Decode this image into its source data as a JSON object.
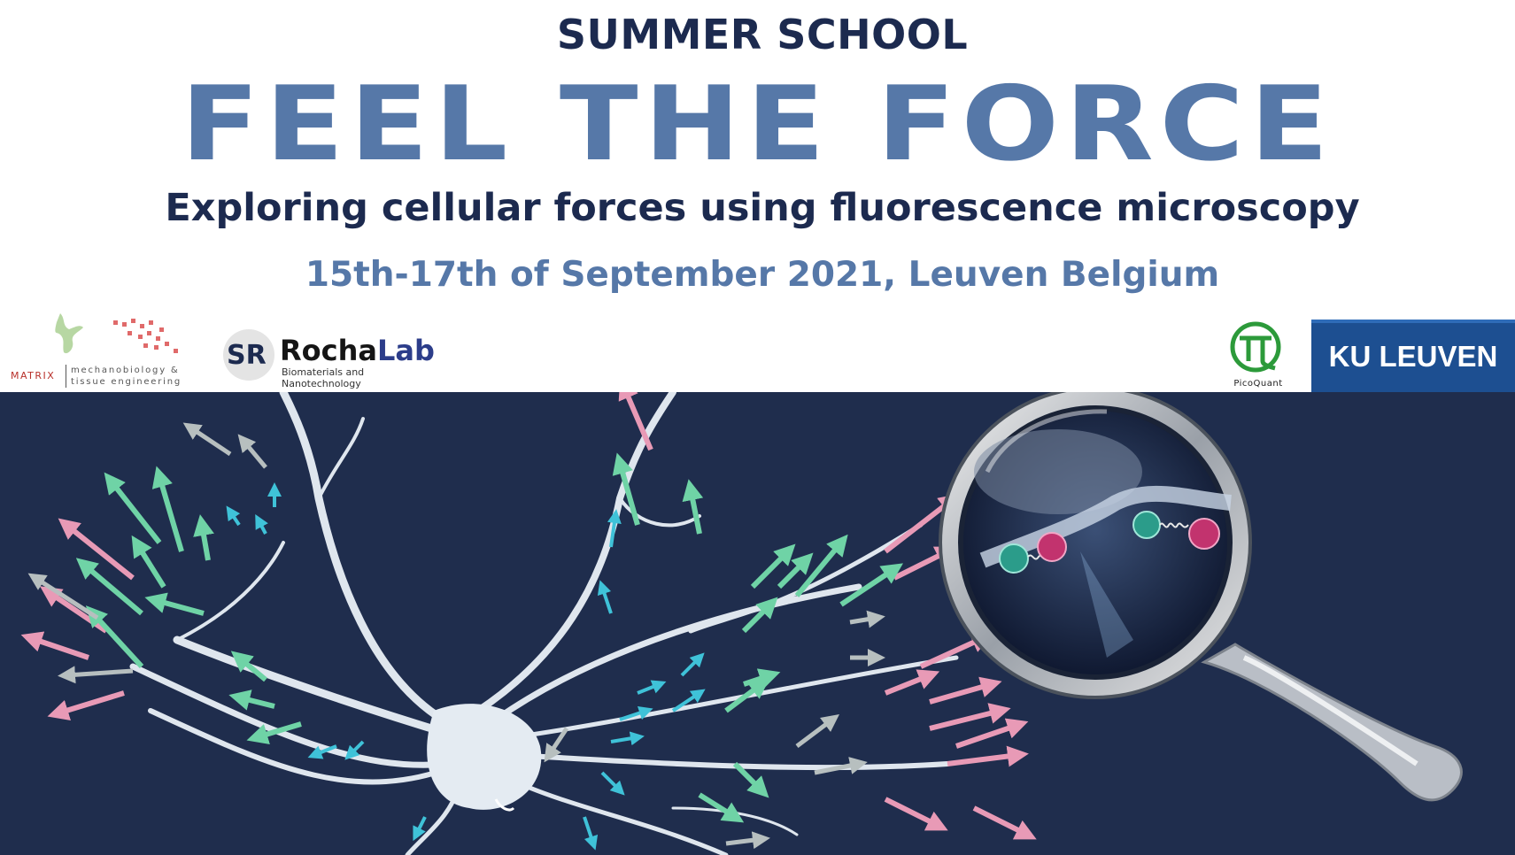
{
  "banner": {
    "kicker": "SUMMER SCHOOL",
    "title": "FEEL THE FORCE",
    "subtitle": "Exploring cellular forces using fluorescence microscopy",
    "dates": "15th-17th of September 2021, Leuven Belgium"
  },
  "logos": {
    "matrix": {
      "word": "MATRIX",
      "sub": "mechanobiology & tissue engineering"
    },
    "rochalab": {
      "badge": "SR",
      "name_a": "Rocha",
      "name_b": "Lab",
      "sub": "Biomaterials and Nanotechnology"
    },
    "picoquant": {
      "word": "PicoQuant"
    },
    "kuleuven": {
      "text": "KU LEUVEN"
    }
  },
  "colors": {
    "navy": "#1c2a4f",
    "accent_blue": "#5678a8",
    "scene_bg": "#1f2d4d",
    "arrow_pink": "#e89ab6",
    "arrow_green": "#6fd3a6",
    "arrow_cyan": "#3fc2d8",
    "ku_blue": "#1d4f91"
  },
  "illustration": {
    "subject": "neuron-with-force-arrows",
    "tool": "magnifying-glass-icon"
  }
}
